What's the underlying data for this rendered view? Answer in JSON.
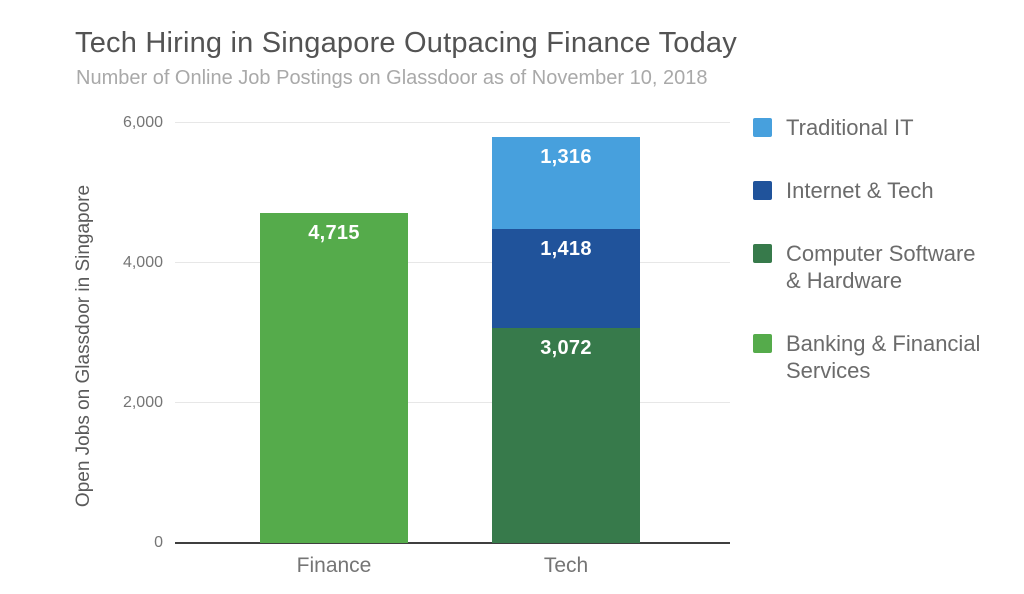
{
  "chart_data": {
    "type": "bar",
    "stacked": true,
    "title": "Tech Hiring in Singapore Outpacing Finance Today",
    "subtitle": "Number of Online Job Postings on Glassdoor as of November 10, 2018",
    "ylabel": "Open Jobs on Glassdoor in Singapore",
    "xlabel": "",
    "ylim": [
      0,
      6000
    ],
    "yticks": [
      0,
      2000,
      4000,
      6000
    ],
    "ytick_labels": [
      "0",
      "2,000",
      "4,000",
      "6,000"
    ],
    "grid": "horizontal",
    "legend_position": "right",
    "categories": [
      "Finance",
      "Tech"
    ],
    "series": [
      {
        "name": "Banking & Financial Services",
        "color": "#55ab4b",
        "values": [
          4715,
          0
        ]
      },
      {
        "name": "Computer Software & Hardware",
        "color": "#377a4b",
        "values": [
          0,
          3072
        ]
      },
      {
        "name": "Internet & Tech",
        "color": "#20539b",
        "values": [
          0,
          1418
        ]
      },
      {
        "name": "Traditional IT",
        "color": "#47a0dd",
        "values": [
          0,
          1316
        ]
      }
    ],
    "bars": [
      {
        "category": "Finance",
        "total": 4715,
        "segments": [
          {
            "label": "Banking & Financial Services",
            "value": 4715,
            "display": "4,715",
            "color": "#55ab4b"
          }
        ]
      },
      {
        "category": "Tech",
        "total": 5806,
        "segments": [
          {
            "label": "Computer Software & Hardware",
            "value": 3072,
            "display": "3,072",
            "color": "#377a4b"
          },
          {
            "label": "Internet & Tech",
            "value": 1418,
            "display": "1,418",
            "color": "#20539b"
          },
          {
            "label": "Traditional IT",
            "value": 1316,
            "display": "1,316",
            "color": "#47a0dd"
          }
        ]
      }
    ],
    "legend": [
      {
        "label": "Traditional IT",
        "color": "#47a0dd"
      },
      {
        "label": "Internet & Tech",
        "color": "#20539b"
      },
      {
        "label": "Computer Software & Hardware",
        "color": "#377a4b"
      },
      {
        "label": "Banking & Financial Services",
        "color": "#55ab4b"
      }
    ],
    "colors": {
      "title_text": "#535353",
      "subtitle_text": "#a9a9a9",
      "axis_text": "#757575",
      "axis_line": "#3f3f3f",
      "gridline": "#e7e7e7",
      "bar_value_text": "#ffffff",
      "background": "#ffffff"
    }
  }
}
